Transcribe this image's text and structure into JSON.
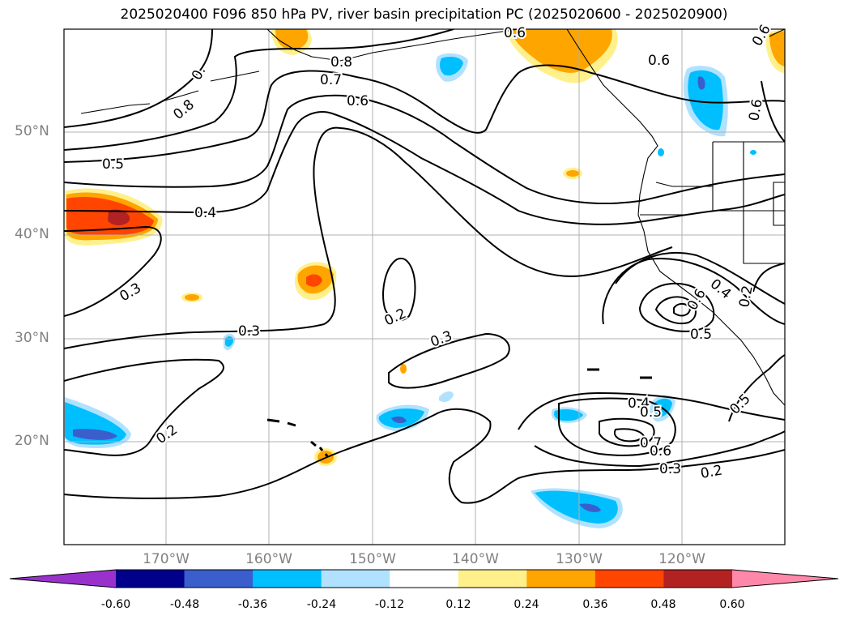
{
  "title": "2025020400 F096 850 hPa PV, river basin precipitation PC (2025020600 - 2025020900)",
  "lat_labels": [
    "50°N",
    "40°N",
    "30°N",
    "20°N"
  ],
  "lon_labels": [
    "170°W",
    "160°W",
    "150°W",
    "140°W",
    "130°W",
    "120°W"
  ],
  "contour_labels": [
    "0.8",
    "0.8",
    "0.7",
    "0.6",
    "0.6",
    "0.5",
    "0.4",
    "0.3",
    "0.3",
    "0.2",
    "0.3",
    "0.2",
    "0.4",
    "0.5",
    "0.7",
    "0.6",
    "0.3",
    "0.2",
    "0.4",
    "0.6",
    "0.5",
    "0.2",
    "0.5",
    "0.6",
    "0.6",
    "0.",
    "0.6"
  ],
  "colorbar": {
    "ticks": [
      "-0.60",
      "-0.48",
      "-0.36",
      "-0.24",
      "-0.12",
      "0.12",
      "0.24",
      "0.36",
      "0.48",
      "0.60"
    ],
    "colors": [
      "#9932cc",
      "#00008b",
      "#3a5fcd",
      "#00bfff",
      "#b0e2ff",
      "#ffffff",
      "#fff08c",
      "#ffa500",
      "#ff4500",
      "#b22222",
      "#ff88aa",
      "#ff88aa"
    ],
    "under_color": "#9932cc",
    "over_color": "#ff88aa"
  },
  "legend_colors": {
    "contour": "#000000",
    "grid": "#b0b0b0"
  }
}
